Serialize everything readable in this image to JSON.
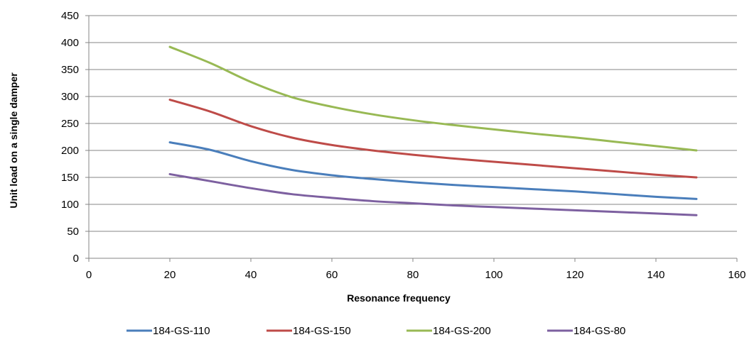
{
  "chart_data": {
    "type": "line",
    "title": "",
    "xlabel": "Resonance frequency",
    "ylabel": "Unit load on a single damper",
    "xlim": [
      0,
      160
    ],
    "ylim": [
      0,
      450
    ],
    "x_ticks": [
      0,
      20,
      40,
      60,
      80,
      100,
      120,
      140,
      160
    ],
    "y_ticks": [
      0,
      50,
      100,
      150,
      200,
      250,
      300,
      350,
      400,
      450
    ],
    "grid": "horizontal",
    "legend_position": "bottom",
    "series": [
      {
        "name": "184-GS-110",
        "color": "#4A7EBB",
        "x": [
          20,
          30,
          40,
          50,
          60,
          70,
          80,
          90,
          100,
          110,
          120,
          130,
          140,
          150
        ],
        "y": [
          215,
          201,
          180,
          164,
          154,
          147,
          141,
          136,
          132,
          128,
          124,
          119,
          114,
          110
        ]
      },
      {
        "name": "184-GS-150",
        "color": "#BE4B48",
        "x": [
          20,
          30,
          40,
          50,
          60,
          70,
          80,
          90,
          100,
          110,
          120,
          130,
          140,
          150
        ],
        "y": [
          294,
          272,
          245,
          224,
          210,
          200,
          192,
          185,
          179,
          173,
          167,
          161,
          155,
          150
        ]
      },
      {
        "name": "184-GS-200",
        "color": "#98B954",
        "x": [
          20,
          30,
          40,
          50,
          60,
          70,
          80,
          90,
          100,
          110,
          120,
          130,
          140,
          150
        ],
        "y": [
          392,
          362,
          327,
          299,
          281,
          267,
          256,
          247,
          239,
          231,
          224,
          216,
          208,
          200
        ]
      },
      {
        "name": "184-GS-80",
        "color": "#7D60A0",
        "x": [
          20,
          30,
          40,
          50,
          60,
          70,
          80,
          90,
          100,
          110,
          120,
          130,
          140,
          150
        ],
        "y": [
          156,
          143,
          130,
          119,
          112,
          106,
          102,
          98,
          95,
          92,
          89,
          86,
          83,
          80
        ]
      }
    ]
  }
}
